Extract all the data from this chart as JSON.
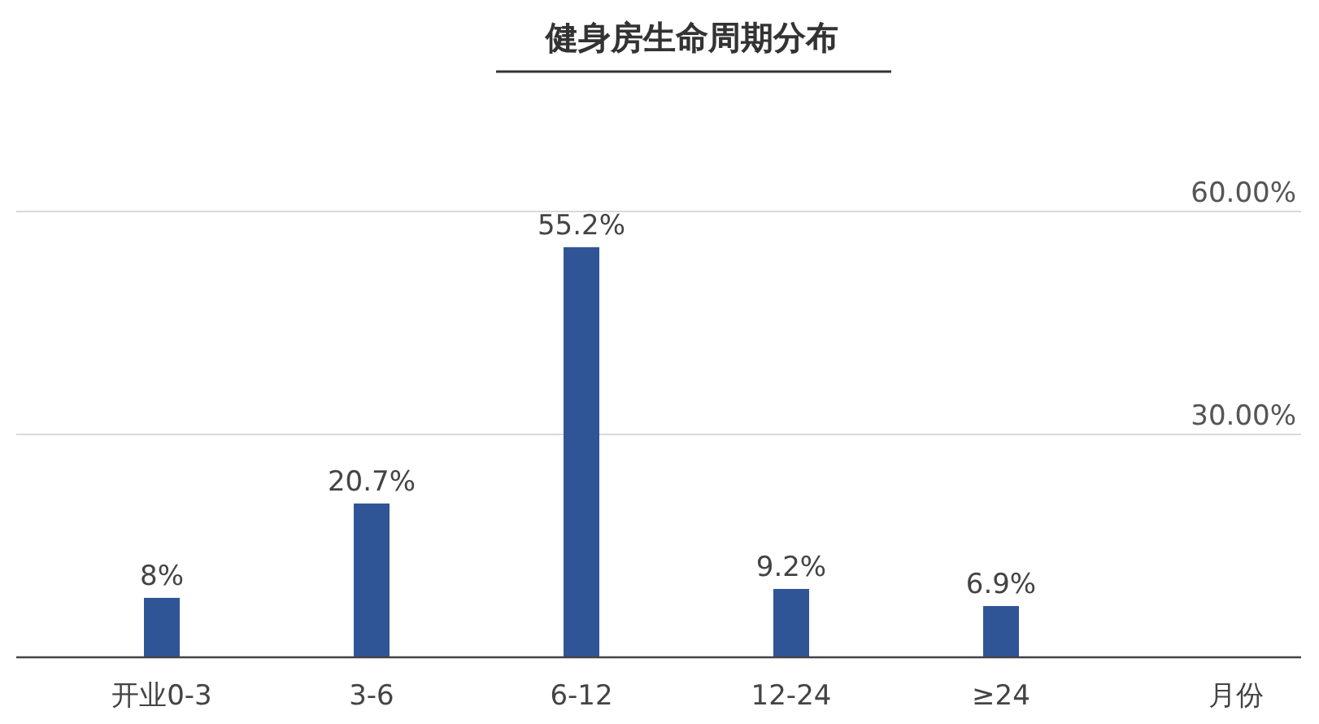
{
  "chart_data": {
    "type": "bar",
    "title": "健身房生命周期分布",
    "xlabel": "月份",
    "categories": [
      "开业0-3",
      "3-6",
      "6-12",
      "12-24",
      "≥24"
    ],
    "values": [
      8,
      20.7,
      55.2,
      9.2,
      6.9
    ],
    "value_labels": [
      "8%",
      "20.7%",
      "55.2%",
      "9.2%",
      "6.9%"
    ],
    "color": "#2f5597",
    "ylim": [
      0,
      60
    ],
    "yticks": [
      {
        "value": 0,
        "label": null
      },
      {
        "value": 30,
        "label": "30.00%"
      },
      {
        "value": 60,
        "label": "60.00%"
      }
    ],
    "grid": "y"
  }
}
